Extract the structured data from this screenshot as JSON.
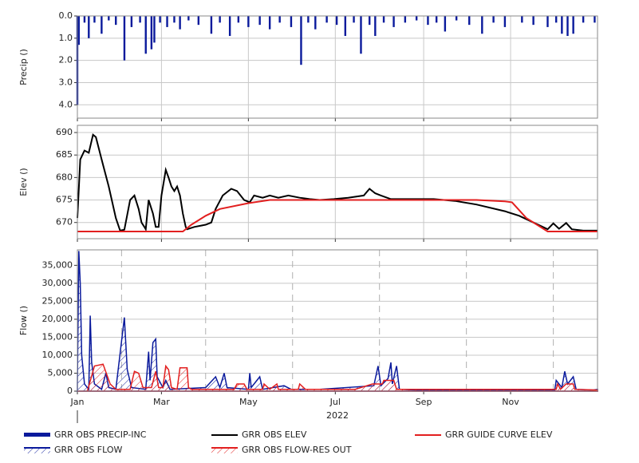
{
  "chart_data": [
    {
      "type": "bar",
      "ylabel": "Precip ()",
      "ylim": [
        0,
        4.6
      ],
      "yinvert": true,
      "yticks": [
        {
          "value": 0,
          "label": "0.0"
        },
        {
          "value": 1,
          "label": "1.0"
        },
        {
          "value": 2,
          "label": "2.0"
        },
        {
          "value": 3,
          "label": "3.0"
        },
        {
          "value": 4,
          "label": "4.0"
        }
      ],
      "xlim": [
        0,
        365
      ],
      "xticks": [
        0,
        59,
        120,
        181,
        243,
        304
      ],
      "xgrid": true,
      "grid": true,
      "series": [
        {
          "name": "GRR OBS PRECIP-INC",
          "color": "#0a1a9c",
          "x": [
            0,
            1,
            5,
            8,
            12,
            17,
            22,
            27,
            33,
            38,
            44,
            48,
            52,
            54,
            58,
            63,
            68,
            72,
            78,
            85,
            94,
            100,
            107,
            113,
            120,
            128,
            135,
            142,
            150,
            157,
            162,
            167,
            175,
            182,
            188,
            194,
            199,
            205,
            209,
            215,
            222,
            230,
            238,
            246,
            252,
            258,
            266,
            275,
            284,
            292,
            300,
            312,
            320,
            330,
            336,
            340,
            344,
            348,
            355,
            363
          ],
          "values": [
            4.0,
            1.3,
            0.3,
            1.0,
            0.3,
            0.8,
            0.2,
            0.4,
            2.0,
            0.5,
            0.3,
            1.7,
            1.5,
            1.2,
            0.3,
            0.5,
            0.3,
            0.6,
            0.2,
            0.4,
            0.8,
            0.3,
            0.9,
            0.3,
            0.5,
            0.4,
            0.6,
            0.3,
            0.5,
            2.2,
            0.3,
            0.6,
            0.3,
            0.4,
            0.9,
            0.3,
            1.7,
            0.4,
            0.9,
            0.3,
            0.5,
            0.3,
            0.2,
            0.4,
            0.3,
            0.7,
            0.2,
            0.4,
            0.8,
            0.3,
            0.5,
            0.3,
            0.4,
            0.5,
            0.3,
            0.8,
            0.9,
            0.8,
            0.3,
            0.3
          ]
        }
      ]
    },
    {
      "type": "line",
      "ylabel": "Elev ()",
      "ylim": [
        666.4,
        691.6
      ],
      "yticks": [
        670,
        675,
        680,
        685,
        690
      ],
      "xlim": [
        0,
        365
      ],
      "xticks": [
        0,
        59,
        120,
        181,
        243,
        304
      ],
      "xgrid": true,
      "grid": true,
      "series": [
        {
          "name": "GRR OBS ELEV",
          "color": "#000000",
          "x": [
            0,
            2,
            5,
            8,
            11,
            13,
            17,
            22,
            27,
            30,
            33,
            37,
            40,
            43,
            45,
            47,
            48,
            50,
            53,
            55,
            57,
            59,
            62,
            64,
            66,
            68,
            70,
            72,
            74,
            76,
            77,
            82,
            90,
            94,
            97,
            102,
            108,
            112,
            117,
            121,
            124,
            130,
            135,
            141,
            148,
            156,
            163,
            170,
            180,
            190,
            201,
            205,
            209,
            213,
            220,
            250,
            265,
            280,
            300,
            310,
            320,
            330,
            334,
            338,
            343,
            347,
            355,
            365
          ],
          "values": [
            671,
            684,
            686,
            685.5,
            689.5,
            689,
            684,
            678,
            671,
            668.2,
            668.4,
            675,
            676,
            673,
            670,
            669,
            668.5,
            675,
            672,
            669,
            669,
            676,
            681.7,
            680,
            678,
            677,
            678,
            676,
            672,
            669,
            668.5,
            669,
            669.5,
            670,
            673,
            676,
            677.5,
            677,
            675,
            674.5,
            676,
            675.5,
            676,
            675.5,
            676,
            675.5,
            675.2,
            675,
            675.2,
            675.5,
            676,
            677.5,
            676.5,
            676,
            675.2,
            675.2,
            674.8,
            674,
            672.5,
            671.5,
            670,
            668.5,
            669.8,
            668.6,
            669.9,
            668.5,
            668.2,
            668.2
          ]
        },
        {
          "name": "GRR GUIDE CURVE ELEV",
          "color": "#e21f1f",
          "x": [
            0,
            74,
            80,
            90,
            100,
            120,
            135,
            280,
            300,
            305,
            315,
            330,
            365
          ],
          "values": [
            668,
            668,
            669.5,
            671.5,
            673,
            674.3,
            675,
            675,
            674.7,
            674.5,
            671,
            668,
            668
          ]
        }
      ]
    },
    {
      "type": "area",
      "ylabel": "Flow ()",
      "ylim": [
        0,
        39300
      ],
      "yticks": [
        0,
        {
          "value": 5000,
          "label": "5,000"
        },
        {
          "value": 10000,
          "label": "10,000"
        },
        {
          "value": 15000,
          "label": "15,000"
        },
        {
          "value": 20000,
          "label": "20,000"
        },
        {
          "value": 25000,
          "label": "25,000"
        },
        {
          "value": 30000,
          "label": "30,000"
        },
        {
          "value": 35000,
          "label": "35,000"
        }
      ],
      "xlim": [
        0,
        365
      ],
      "xticks": [
        {
          "value": 0,
          "label": "Jan"
        },
        {
          "value": 59,
          "label": "Mar"
        },
        {
          "value": 120,
          "label": "May"
        },
        {
          "value": 181,
          "label": "Jul"
        },
        {
          "value": 243,
          "label": "Sep"
        },
        {
          "value": 304,
          "label": "Nov"
        }
      ],
      "xgrid": false,
      "grid": true,
      "vlines": [
        31,
        90,
        151,
        212,
        273,
        334
      ],
      "xlabel": "2022",
      "series": [
        {
          "name": "GRR OBS FLOW",
          "color": "#0a1a9c",
          "x": [
            0,
            1,
            2,
            3,
            5,
            8,
            9,
            10,
            12,
            17,
            20,
            22,
            27,
            33,
            35,
            38,
            48,
            50,
            51,
            53,
            55,
            56,
            60,
            62,
            65,
            90,
            97,
            100,
            103,
            105,
            120,
            121,
            122,
            128,
            130,
            145,
            150,
            170,
            208,
            211,
            213,
            218,
            220,
            221,
            224,
            226,
            240,
            300,
            335,
            336,
            340,
            342,
            344,
            348,
            350,
            362,
            365
          ],
          "values": [
            2000,
            39000,
            30000,
            10000,
            2000,
            500,
            21000,
            8000,
            2000,
            500,
            5000,
            1000,
            500,
            20500,
            6000,
            1000,
            500,
            11000,
            3000,
            13500,
            14500,
            4000,
            1000,
            3000,
            500,
            1000,
            4000,
            1000,
            5000,
            1000,
            500,
            5000,
            1000,
            4000,
            500,
            1500,
            500,
            500,
            1500,
            7000,
            1500,
            3500,
            8000,
            2000,
            7000,
            500,
            300,
            300,
            300,
            3000,
            1000,
            5500,
            2000,
            4000,
            500,
            300,
            500
          ]
        },
        {
          "name": "GRR OBS FLOW-RES OUT",
          "color": "#e21f1f",
          "x": [
            0,
            7,
            12,
            18,
            23,
            27,
            37,
            40,
            43,
            46,
            52,
            55,
            57,
            60,
            62,
            64,
            66,
            70,
            72,
            77,
            78,
            80,
            110,
            112,
            117,
            119,
            130,
            131,
            135,
            140,
            141,
            155,
            156,
            160,
            195,
            207,
            214,
            215,
            222,
            224,
            300,
            336,
            337,
            339,
            343,
            348,
            349,
            365
          ],
          "values": [
            0,
            0,
            7000,
            7500,
            2000,
            500,
            500,
            5500,
            5000,
            1000,
            1000,
            5500,
            1000,
            1000,
            7000,
            6000,
            1000,
            500,
            6500,
            6500,
            1000,
            500,
            500,
            2000,
            2000,
            500,
            500,
            2000,
            500,
            2000,
            500,
            500,
            2000,
            500,
            500,
            2000,
            2000,
            3000,
            3000,
            500,
            500,
            500,
            2000,
            500,
            2000,
            2000,
            500,
            300
          ]
        }
      ]
    }
  ]
}
